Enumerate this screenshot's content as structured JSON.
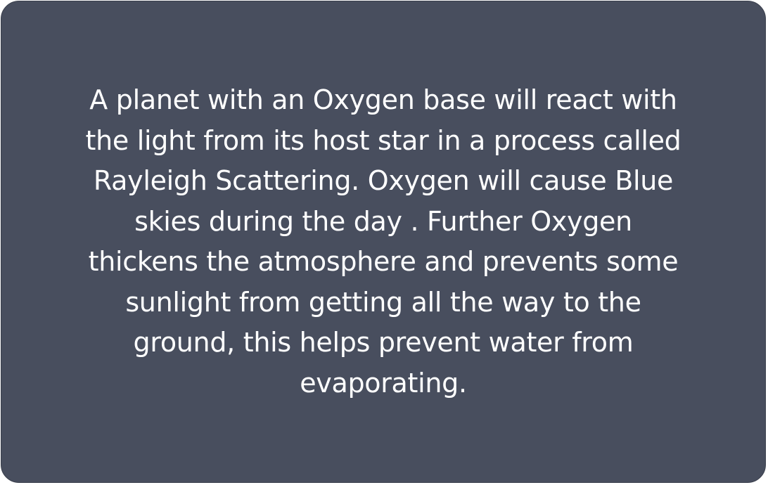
{
  "card": {
    "background": "#484e5e",
    "text_color": "#ffffff",
    "lines": [
      "A planet with an Oxygen base will react with",
      "the light from its host star in a process called",
      "Rayleigh Scattering. Oxygen will cause Blue",
      "skies during the day . Further Oxygen",
      "thickens the atmosphere and prevents some",
      "sunlight from getting all the way to the",
      "ground, this helps prevent water from",
      "evaporating."
    ]
  }
}
